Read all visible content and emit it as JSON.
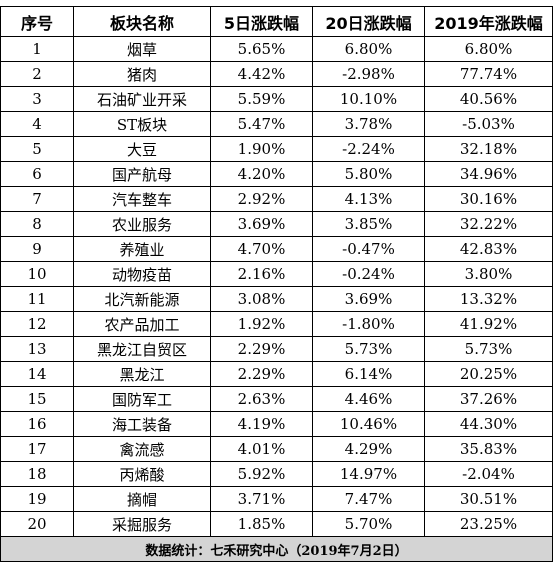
{
  "table": {
    "headers": [
      "序号",
      "板块名称",
      "5日涨跌幅",
      "20日涨跌幅",
      "2019年涨跌幅"
    ],
    "rows": [
      [
        "1",
        "烟草",
        "5.65%",
        "6.80%",
        "6.80%"
      ],
      [
        "2",
        "猪肉",
        "4.42%",
        "-2.98%",
        "77.74%"
      ],
      [
        "3",
        "石油矿业开采",
        "5.59%",
        "10.10%",
        "40.56%"
      ],
      [
        "4",
        "ST板块",
        "5.47%",
        "3.78%",
        "-5.03%"
      ],
      [
        "5",
        "大豆",
        "1.90%",
        "-2.24%",
        "32.18%"
      ],
      [
        "6",
        "国产航母",
        "4.20%",
        "5.80%",
        "34.96%"
      ],
      [
        "7",
        "汽车整车",
        "2.92%",
        "4.13%",
        "30.16%"
      ],
      [
        "8",
        "农业服务",
        "3.69%",
        "3.85%",
        "32.22%"
      ],
      [
        "9",
        "养殖业",
        "4.70%",
        "-0.47%",
        "42.83%"
      ],
      [
        "10",
        "动物疫苗",
        "2.16%",
        "-0.24%",
        "3.80%"
      ],
      [
        "11",
        "北汽新能源",
        "3.08%",
        "3.69%",
        "13.32%"
      ],
      [
        "12",
        "农产品加工",
        "1.92%",
        "-1.80%",
        "41.92%"
      ],
      [
        "13",
        "黑龙江自贸区",
        "2.29%",
        "5.73%",
        "5.73%"
      ],
      [
        "14",
        "黑龙江",
        "2.29%",
        "6.14%",
        "20.25%"
      ],
      [
        "15",
        "国防军工",
        "2.63%",
        "4.46%",
        "37.26%"
      ],
      [
        "16",
        "海工装备",
        "4.19%",
        "10.46%",
        "44.30%"
      ],
      [
        "17",
        "禽流感",
        "4.01%",
        "4.29%",
        "35.83%"
      ],
      [
        "18",
        "丙烯酸",
        "5.92%",
        "14.97%",
        "-2.04%"
      ],
      [
        "19",
        "摘帽",
        "3.71%",
        "7.47%",
        "30.51%"
      ],
      [
        "20",
        "采掘服务",
        "1.85%",
        "5.70%",
        "23.25%"
      ]
    ],
    "footer": "数据统计：七禾研究中心（2019年7月2日）"
  },
  "colors": {
    "border": "#000000",
    "footer_background": "#d4d4d4",
    "background": "#ffffff"
  }
}
